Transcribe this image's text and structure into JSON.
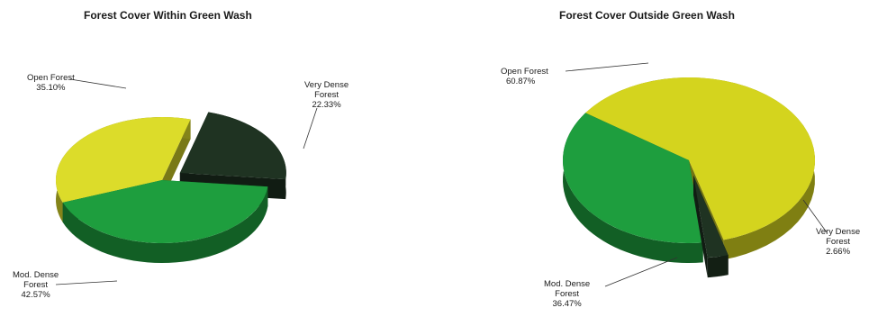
{
  "chart_data": [
    {
      "type": "pie",
      "title": "Forest Cover Within Green Wash",
      "slices": [
        {
          "label_line1": "Very Dense",
          "label_line2": "Forest",
          "percent_text": "22.33%",
          "value": 22.33,
          "color": "#1f3322"
        },
        {
          "label_line1": "Mod. Dense",
          "label_line2": "Forest",
          "percent_text": "42.57%",
          "value": 42.57,
          "color": "#1e9e3e"
        },
        {
          "label_line1": "Open Forest",
          "label_line2": "",
          "percent_text": "35.10%",
          "value": 35.1,
          "color": "#dcdc2a"
        }
      ]
    },
    {
      "type": "pie",
      "title": "Forest Cover Outside Green Wash",
      "slices": [
        {
          "label_line1": "Open Forest",
          "label_line2": "",
          "percent_text": "60.87%",
          "value": 60.87,
          "color": "#d4d41e"
        },
        {
          "label_line1": "Very Dense",
          "label_line2": "Forest",
          "percent_text": "2.66%",
          "value": 2.66,
          "color": "#1f3322"
        },
        {
          "label_line1": "Mod. Dense",
          "label_line2": "Forest",
          "percent_text": "36.47%",
          "value": 36.47,
          "color": "#1e9e3e"
        }
      ]
    }
  ]
}
